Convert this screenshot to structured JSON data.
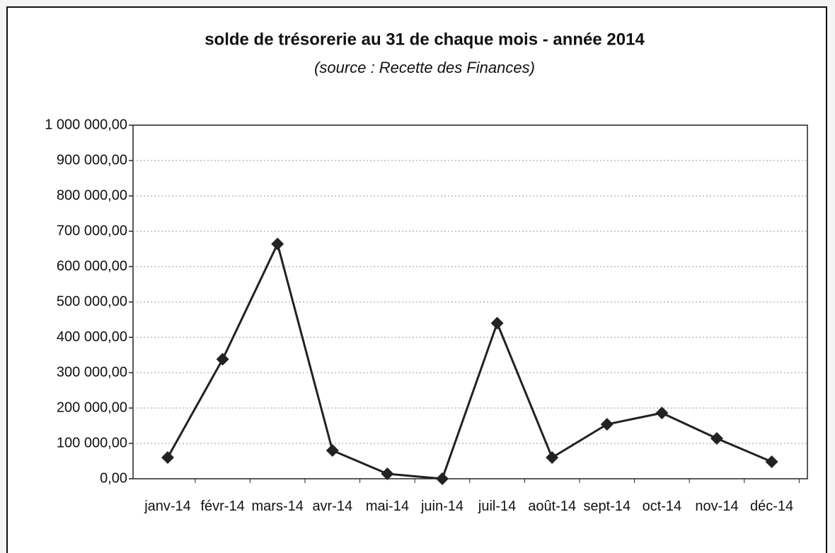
{
  "chart_data": {
    "type": "line",
    "title": "solde de trésorerie au 31 de chaque mois - année 2014",
    "subtitle": "(source : Recette des Finances)",
    "categories": [
      "janv-14",
      "févr-14",
      "mars-14",
      "avr-14",
      "mai-14",
      "juin-14",
      "juil-14",
      "août-14",
      "sept-14",
      "oct-14",
      "nov-14",
      "déc-14"
    ],
    "series": [
      {
        "name": "solde",
        "color": "#222222",
        "values": [
          60000,
          338000,
          664000,
          80000,
          14000,
          0,
          440000,
          60000,
          154000,
          186000,
          114000,
          48000
        ]
      }
    ],
    "ylim": [
      0,
      1000000
    ],
    "yticks": [
      {
        "value": 0,
        "label": "0,00"
      },
      {
        "value": 100000,
        "label": "100 000,00"
      },
      {
        "value": 200000,
        "label": "200 000,00"
      },
      {
        "value": 300000,
        "label": "300 000,00"
      },
      {
        "value": 400000,
        "label": "400 000,00"
      },
      {
        "value": 500000,
        "label": "500 000,00"
      },
      {
        "value": 600000,
        "label": "600 000,00"
      },
      {
        "value": 700000,
        "label": "700 000,00"
      },
      {
        "value": 800000,
        "label": "800 000,00"
      },
      {
        "value": 900000,
        "label": "900 000,00"
      },
      {
        "value": 1000000,
        "label": "1 000 000,00"
      }
    ],
    "grid": true
  }
}
